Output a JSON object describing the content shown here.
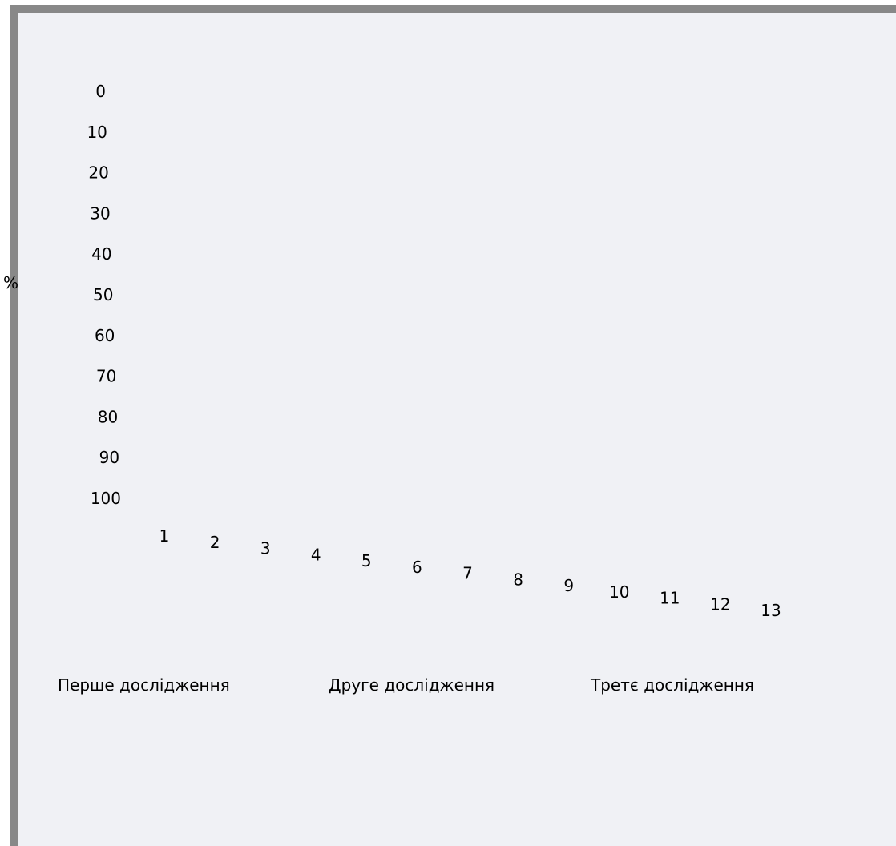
{
  "chart_data": {
    "type": "line",
    "title": "",
    "xlabel": "",
    "ylabel": "%",
    "ylim": [
      0,
      100
    ],
    "y_ticks": [
      "0",
      "10",
      "20",
      "30",
      "40",
      "50",
      "60",
      "70",
      "80",
      "90",
      "100"
    ],
    "x_ticks": [
      "1",
      "2",
      "3",
      "4",
      "5",
      "6",
      "7",
      "8",
      "9",
      "10",
      "11",
      "12",
      "13"
    ],
    "legend": [
      "Перше дослідження",
      "Друге дослідження",
      "Третє дослідження"
    ],
    "legend_position": "bottom",
    "grid": false,
    "series": []
  }
}
